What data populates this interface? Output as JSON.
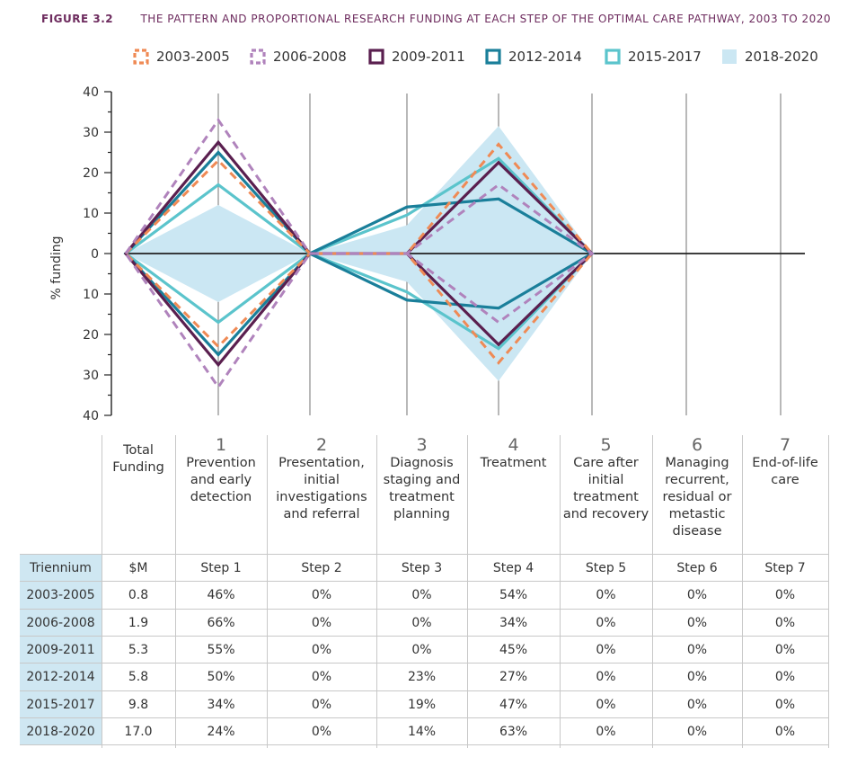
{
  "figure": {
    "number": "FIGURE 3.2",
    "title": "THE PATTERN AND PROPORTIONAL RESEARCH FUNDING AT EACH STEP OF THE OPTIMAL CARE PATHWAY, 2003 TO 2020"
  },
  "legend": [
    {
      "label": "2003-2005",
      "color": "#ef8a55",
      "style": "dashed"
    },
    {
      "label": "2006-2008",
      "color": "#b083bc",
      "style": "dashed"
    },
    {
      "label": "2009-2011",
      "color": "#5a1f4f",
      "style": "solid"
    },
    {
      "label": "2012-2014",
      "color": "#1a7f9a",
      "style": "solid"
    },
    {
      "label": "2015-2017",
      "color": "#5bc4cc",
      "style": "solid"
    },
    {
      "label": "2018-2020",
      "color": "#cbe7f3",
      "style": "fill"
    }
  ],
  "chart_data": {
    "type": "line",
    "title": "The pattern and proportional research funding at each step of the optimal care pathway, 2003 to 2020",
    "ylabel": "% funding",
    "ylim": [
      -40,
      40
    ],
    "yticks": [
      40,
      30,
      20,
      10,
      0,
      10,
      20,
      30,
      40
    ],
    "yticks_values": [
      40,
      30,
      20,
      10,
      0,
      -10,
      -20,
      -30,
      -40
    ],
    "x_steps": [
      "Total Funding",
      "Step 1",
      "Step 2",
      "Step 3",
      "Step 4",
      "Step 5",
      "Step 6",
      "Step 7"
    ],
    "note": "Symmetric diamond shapes: each series plotted as +value and -value at each step, meeting at 0 between steps",
    "series": [
      {
        "name": "2003-2005",
        "points": [
          [
            0,
            0
          ],
          [
            1,
            23
          ],
          [
            2,
            0
          ],
          [
            3,
            0
          ],
          [
            4,
            27
          ],
          [
            5,
            0
          ]
        ]
      },
      {
        "name": "2006-2008",
        "points": [
          [
            0,
            0
          ],
          [
            1,
            33
          ],
          [
            2,
            0
          ],
          [
            3,
            0
          ],
          [
            4,
            17
          ],
          [
            5,
            0
          ]
        ]
      },
      {
        "name": "2009-2011",
        "points": [
          [
            0,
            0
          ],
          [
            1,
            27.5
          ],
          [
            2,
            0
          ],
          [
            3,
            0
          ],
          [
            4,
            22.5
          ],
          [
            5,
            0
          ]
        ]
      },
      {
        "name": "2012-2014",
        "points": [
          [
            0,
            0
          ],
          [
            1,
            25
          ],
          [
            2,
            0
          ],
          [
            3,
            11.5
          ],
          [
            4,
            13.5
          ],
          [
            5,
            0
          ]
        ]
      },
      {
        "name": "2015-2017",
        "points": [
          [
            0,
            0
          ],
          [
            1,
            17
          ],
          [
            2,
            0
          ],
          [
            3,
            9.5
          ],
          [
            4,
            23.5
          ],
          [
            5,
            0
          ]
        ]
      },
      {
        "name": "2018-2020",
        "points": [
          [
            0,
            0
          ],
          [
            1,
            12
          ],
          [
            2,
            0
          ],
          [
            3,
            7
          ],
          [
            4,
            31.5
          ],
          [
            5,
            0
          ]
        ]
      }
    ]
  },
  "table": {
    "headers": [
      {
        "num": "",
        "label": "Total Funding"
      },
      {
        "num": "1",
        "label": "Prevention and early detection"
      },
      {
        "num": "2",
        "label": "Presentation, initial investigations and referral"
      },
      {
        "num": "3",
        "label": "Diagnosis staging and treatment planning"
      },
      {
        "num": "4",
        "label": "Treatment"
      },
      {
        "num": "5",
        "label": "Care after initial treatment and recovery"
      },
      {
        "num": "6",
        "label": "Managing recurrent, residual or metastic disease"
      },
      {
        "num": "7",
        "label": "End-of-life care"
      }
    ],
    "rows": [
      [
        "Triennium",
        "$M",
        "Step 1",
        "Step 2",
        "Step 3",
        "Step 4",
        "Step 5",
        "Step 6",
        "Step 7"
      ],
      [
        "2003-2005",
        "0.8",
        "46%",
        "0%",
        "0%",
        "54%",
        "0%",
        "0%",
        "0%"
      ],
      [
        "2006-2008",
        "1.9",
        "66%",
        "0%",
        "0%",
        "34%",
        "0%",
        "0%",
        "0%"
      ],
      [
        "2009-2011",
        "5.3",
        "55%",
        "0%",
        "0%",
        "45%",
        "0%",
        "0%",
        "0%"
      ],
      [
        "2012-2014",
        "5.8",
        "50%",
        "0%",
        "23%",
        "27%",
        "0%",
        "0%",
        "0%"
      ],
      [
        "2015-2017",
        "9.8",
        "34%",
        "0%",
        "19%",
        "47%",
        "0%",
        "0%",
        "0%"
      ],
      [
        "2018-2020",
        "17.0",
        "24%",
        "0%",
        "14%",
        "63%",
        "0%",
        "0%",
        "0%"
      ]
    ]
  }
}
